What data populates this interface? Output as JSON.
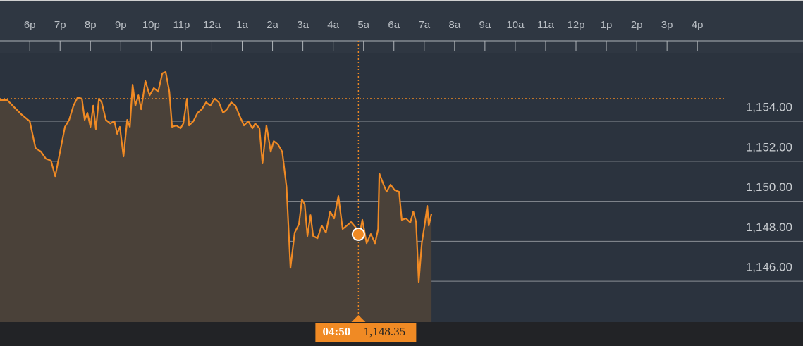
{
  "chart_data": {
    "type": "line",
    "color": "#f08a24",
    "xlim": [
      -0.98,
      25.48
    ],
    "ylim": [
      1143.96,
      1157.42
    ],
    "xticks": [
      {
        "value": 0,
        "label": "6p"
      },
      {
        "value": 1,
        "label": "7p"
      },
      {
        "value": 2,
        "label": "8p"
      },
      {
        "value": 3,
        "label": "9p"
      },
      {
        "value": 4,
        "label": "10p"
      },
      {
        "value": 5,
        "label": "11p"
      },
      {
        "value": 6,
        "label": "12a"
      },
      {
        "value": 7,
        "label": "1a"
      },
      {
        "value": 8,
        "label": "2a"
      },
      {
        "value": 9,
        "label": "3a"
      },
      {
        "value": 10,
        "label": "4a"
      },
      {
        "value": 11,
        "label": "5a"
      },
      {
        "value": 12,
        "label": "6a"
      },
      {
        "value": 13,
        "label": "7a"
      },
      {
        "value": 14,
        "label": "8a"
      },
      {
        "value": 15,
        "label": "9a"
      },
      {
        "value": 16,
        "label": "10a"
      },
      {
        "value": 17,
        "label": "11a"
      },
      {
        "value": 18,
        "label": "12p"
      },
      {
        "value": 19,
        "label": "1p"
      },
      {
        "value": 20,
        "label": "2p"
      },
      {
        "value": 21,
        "label": "3p"
      },
      {
        "value": 22,
        "label": "4p"
      }
    ],
    "yticks": [
      {
        "value": 1154,
        "label": "1,154.00"
      },
      {
        "value": 1152,
        "label": "1,152.00"
      },
      {
        "value": 1150,
        "label": "1,150.00"
      },
      {
        "value": 1148,
        "label": "1,148.00"
      },
      {
        "value": 1146,
        "label": "1,146.00"
      }
    ],
    "grid": true,
    "reference_value": 1155.13,
    "crosshair": {
      "time": "04:50",
      "x": 10.83,
      "value": 1148.35,
      "label": "1,148.35"
    },
    "x": [
      -0.98,
      -0.74,
      -0.51,
      -0.28,
      0,
      0.19,
      0.37,
      0.53,
      0.7,
      0.84,
      1.0,
      1.16,
      1.3,
      1.44,
      1.58,
      1.72,
      1.81,
      1.9,
      2.0,
      2.09,
      2.18,
      2.28,
      2.37,
      2.51,
      2.65,
      2.79,
      2.88,
      2.97,
      3.09,
      3.21,
      3.3,
      3.39,
      3.48,
      3.58,
      3.67,
      3.81,
      3.95,
      4.09,
      4.23,
      4.37,
      4.48,
      4.6,
      4.69,
      4.83,
      4.97,
      5.06,
      5.18,
      5.25,
      5.39,
      5.53,
      5.67,
      5.81,
      5.95,
      6.09,
      6.23,
      6.37,
      6.5,
      6.64,
      6.78,
      6.92,
      7.06,
      7.2,
      7.34,
      7.43,
      7.57,
      7.67,
      7.8,
      7.94,
      8.04,
      8.18,
      8.32,
      8.46,
      8.59,
      8.73,
      8.87,
      8.97,
      9.06,
      9.15,
      9.25,
      9.34,
      9.48,
      9.62,
      9.76,
      9.9,
      10.03,
      10.17,
      10.31,
      10.45,
      10.59,
      10.73,
      10.87,
      10.96,
      11.1,
      11.24,
      11.38,
      11.48,
      11.52,
      11.66,
      11.76,
      11.89,
      12.03,
      12.17,
      12.26,
      12.4,
      12.54,
      12.64,
      12.73,
      12.82,
      12.92,
      13.01,
      13.1,
      13.15,
      13.24
    ],
    "values": [
      1155.06,
      1155.06,
      1154.7,
      1154.35,
      1154.0,
      1152.66,
      1152.48,
      1152.13,
      1152.03,
      1151.25,
      1152.48,
      1153.72,
      1154.07,
      1154.78,
      1155.2,
      1155.13,
      1154.07,
      1154.42,
      1153.72,
      1154.78,
      1153.61,
      1155.13,
      1154.95,
      1154.07,
      1153.89,
      1154.0,
      1153.37,
      1153.72,
      1152.24,
      1154.07,
      1153.72,
      1155.83,
      1154.78,
      1155.3,
      1154.6,
      1156.01,
      1155.3,
      1155.66,
      1155.48,
      1156.4,
      1156.47,
      1155.48,
      1153.72,
      1153.79,
      1153.65,
      1153.89,
      1155.13,
      1153.79,
      1154.0,
      1154.42,
      1154.6,
      1154.95,
      1154.78,
      1155.13,
      1154.95,
      1154.42,
      1154.6,
      1154.95,
      1154.78,
      1154.25,
      1153.79,
      1154.0,
      1153.65,
      1153.89,
      1153.65,
      1151.89,
      1153.79,
      1152.48,
      1153.01,
      1152.84,
      1152.48,
      1150.72,
      1146.67,
      1148.43,
      1148.85,
      1150.09,
      1149.84,
      1148.26,
      1149.31,
      1148.26,
      1148.15,
      1148.78,
      1148.43,
      1149.49,
      1149.14,
      1150.26,
      1148.61,
      1148.78,
      1148.96,
      1148.71,
      1148.35,
      1149.07,
      1147.9,
      1148.36,
      1147.9,
      1148.61,
      1151.39,
      1150.83,
      1150.48,
      1150.83,
      1150.55,
      1150.48,
      1149.07,
      1149.14,
      1148.93,
      1149.49,
      1148.96,
      1145.96,
      1147.9,
      1148.78,
      1149.77,
      1148.78,
      1149.38
    ]
  }
}
